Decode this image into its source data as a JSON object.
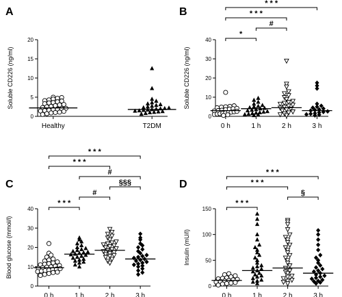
{
  "chart_data": [
    {
      "panel": "A",
      "type": "scatter",
      "ylabel": "Soluble CD226 (ng/ml)",
      "ylim": [
        0,
        20
      ],
      "yticks": [
        0,
        5,
        10,
        15,
        20
      ],
      "categories": [
        "Healthy",
        "T2DM"
      ],
      "markers": [
        "circle-open",
        "triangle-filled"
      ],
      "series": [
        {
          "values": [
            0.5,
            0.7,
            0.9,
            1.0,
            1.1,
            1.3,
            1.4,
            1.5,
            1.6,
            1.8,
            1.9,
            2.0,
            2.1,
            2.3,
            2.5,
            2.6,
            2.8,
            3.0,
            3.1,
            3.3,
            3.5,
            3.6,
            3.8,
            4.0,
            4.1,
            4.3,
            4.5,
            4.7,
            4.9,
            5.0
          ],
          "median": 2.2
        },
        {
          "values": [
            0.6,
            0.8,
            1.0,
            1.1,
            1.2,
            1.3,
            1.4,
            1.5,
            1.6,
            1.7,
            1.8,
            1.9,
            2.0,
            2.1,
            2.2,
            2.3,
            2.5,
            2.7,
            2.9,
            3.1,
            3.3,
            3.6,
            4.0,
            4.5,
            7.3,
            12.5
          ],
          "median": 1.8
        }
      ],
      "comparisons": []
    },
    {
      "panel": "B",
      "type": "scatter",
      "ylabel": "Soluble CD226 (ng/ml)",
      "ylim": [
        0,
        40
      ],
      "yticks": [
        0,
        10,
        20,
        30,
        40
      ],
      "categories": [
        "0 h",
        "1 h",
        "2 h",
        "3 h"
      ],
      "markers": [
        "circle-open",
        "triangle-filled",
        "triangle-down-open",
        "diamond-filled"
      ],
      "series": [
        {
          "values": [
            0.5,
            0.8,
            1.0,
            1.2,
            1.4,
            1.6,
            1.8,
            2.0,
            2.2,
            2.4,
            2.6,
            2.8,
            3.0,
            3.2,
            3.5,
            3.8,
            4.0,
            4.2,
            4.5,
            4.8,
            5.0,
            5.2,
            5.5,
            12.5
          ],
          "median": 3.0
        },
        {
          "values": [
            0.5,
            0.8,
            1.0,
            1.2,
            1.5,
            1.8,
            2.0,
            2.3,
            2.6,
            3.0,
            3.3,
            3.6,
            4.0,
            4.3,
            4.6,
            5.0,
            5.3,
            5.8,
            6.5,
            7.5,
            8.5,
            9.5
          ],
          "median": 4.0
        },
        {
          "values": [
            0.5,
            1.0,
            1.5,
            2.0,
            2.5,
            3.0,
            3.5,
            4.0,
            4.5,
            5.0,
            5.5,
            6.0,
            6.5,
            7.0,
            7.5,
            8.0,
            9.0,
            10.0,
            11.0,
            12.0,
            13.0,
            15.5,
            17.0,
            29.0
          ],
          "median": 4.5
        },
        {
          "values": [
            0.5,
            0.8,
            1.0,
            1.3,
            1.6,
            2.0,
            2.3,
            2.6,
            3.0,
            3.3,
            3.6,
            4.0,
            4.5,
            5.0,
            5.5,
            6.5,
            14.5,
            16.0,
            17.5
          ],
          "median": 3.0
        }
      ],
      "comparisons": [
        {
          "from": "0 h",
          "to": "1 h",
          "label": "*"
        },
        {
          "from": "1 h",
          "to": "2 h",
          "label": "#"
        },
        {
          "from": "0 h",
          "to": "2 h",
          "label": "* * *"
        },
        {
          "from": "0 h",
          "to": "3 h",
          "label": "* * *"
        }
      ]
    },
    {
      "panel": "C",
      "type": "scatter",
      "ylabel": "Blood glucose (mmol/l)",
      "ylim": [
        0,
        40
      ],
      "yticks": [
        0,
        10,
        20,
        30,
        40
      ],
      "categories": [
        "0 h",
        "1 h",
        "2 h",
        "3 h"
      ],
      "markers": [
        "circle-open",
        "triangle-filled",
        "triangle-down-open",
        "diamond-filled"
      ],
      "series": [
        {
          "values": [
            5.5,
            6.0,
            6.5,
            7.0,
            7.2,
            7.5,
            7.8,
            8.0,
            8.2,
            8.5,
            8.8,
            9.0,
            9.2,
            9.5,
            9.8,
            10.0,
            10.3,
            10.6,
            11.0,
            11.3,
            11.6,
            12.0,
            12.5,
            13.0,
            13.5,
            14.0,
            15.0,
            16.0,
            17.0,
            22.0
          ],
          "median": 9.5
        },
        {
          "values": [
            10.0,
            11.0,
            12.0,
            12.5,
            13.0,
            13.5,
            14.0,
            14.5,
            15.0,
            15.5,
            16.0,
            16.3,
            16.6,
            17.0,
            17.3,
            17.6,
            18.0,
            18.5,
            19.0,
            19.5,
            20.0,
            21.0,
            22.0,
            23.0,
            24.0,
            25.0
          ],
          "median": 16.5
        },
        {
          "values": [
            12.0,
            13.0,
            14.0,
            15.0,
            15.5,
            16.0,
            16.5,
            17.0,
            17.5,
            18.0,
            18.5,
            19.0,
            19.5,
            20.0,
            20.5,
            21.0,
            21.5,
            22.0,
            22.5,
            23.0,
            24.0,
            25.0,
            26.0,
            27.0,
            28.0,
            29.5
          ],
          "median": 18.5
        },
        {
          "values": [
            6.0,
            7.0,
            8.0,
            9.0,
            10.0,
            10.5,
            11.0,
            11.5,
            12.0,
            12.5,
            13.0,
            13.5,
            14.0,
            14.5,
            15.0,
            15.5,
            16.0,
            17.0,
            18.0,
            19.0,
            20.0,
            21.0,
            22.0,
            24.0,
            25.0,
            27.0
          ],
          "median": 14.0
        }
      ],
      "comparisons": [
        {
          "from": "0 h",
          "to": "1 h",
          "label": "* * *"
        },
        {
          "from": "1 h",
          "to": "2 h",
          "label": "#"
        },
        {
          "from": "2 h",
          "to": "3 h",
          "label": "§§§"
        },
        {
          "from": "1 h",
          "to": "3 h",
          "label": "#"
        },
        {
          "from": "0 h",
          "to": "2 h",
          "label": "* * *"
        },
        {
          "from": "0 h",
          "to": "3 h",
          "label": "* * *"
        }
      ]
    },
    {
      "panel": "D",
      "type": "scatter",
      "ylabel": "Insulin (mU/l)",
      "ylim": [
        0,
        150
      ],
      "yticks": [
        0,
        50,
        100,
        150
      ],
      "categories": [
        "0 h",
        "1 h",
        "2 h",
        "3 h"
      ],
      "markers": [
        "circle-open",
        "triangle-filled",
        "triangle-down-open",
        "diamond-filled"
      ],
      "series": [
        {
          "values": [
            2,
            4,
            5,
            6,
            7,
            8,
            9,
            10,
            11,
            12,
            13,
            14,
            15,
            16,
            18,
            20,
            22,
            24
          ],
          "median": 11
        },
        {
          "values": [
            5,
            8,
            10,
            12,
            15,
            18,
            20,
            22,
            25,
            28,
            30,
            33,
            35,
            38,
            40,
            45,
            50,
            55,
            60,
            65,
            70,
            75,
            80,
            90,
            100,
            120,
            130,
            140
          ],
          "median": 30
        },
        {
          "values": [
            5,
            8,
            10,
            12,
            15,
            18,
            20,
            25,
            28,
            30,
            35,
            40,
            45,
            50,
            55,
            60,
            65,
            70,
            75,
            80,
            85,
            90,
            95,
            100,
            110,
            120,
            125,
            128
          ],
          "median": 35
        },
        {
          "values": [
            5,
            7,
            9,
            10,
            12,
            14,
            16,
            18,
            20,
            22,
            25,
            28,
            30,
            33,
            36,
            40,
            45,
            50,
            55,
            60,
            70,
            80,
            90,
            100,
            108
          ],
          "median": 25
        }
      ],
      "comparisons": [
        {
          "from": "0 h",
          "to": "1 h",
          "label": "* * *"
        },
        {
          "from": "2 h",
          "to": "3 h",
          "label": "§"
        },
        {
          "from": "0 h",
          "to": "2 h",
          "label": "* * *"
        },
        {
          "from": "0 h",
          "to": "3 h",
          "label": "* * *"
        }
      ]
    }
  ]
}
